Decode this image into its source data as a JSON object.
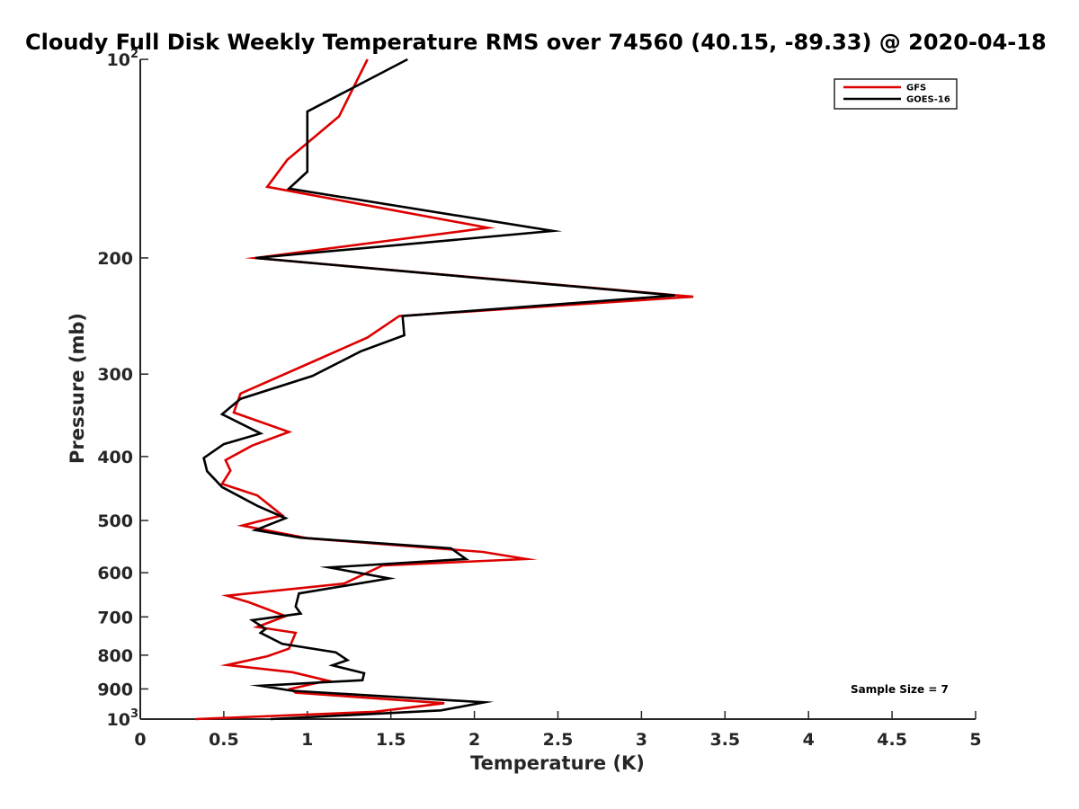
{
  "chart_data": {
    "type": "line",
    "title": "Cloudy Full Disk Weekly Temperature RMS over 74560 (40.15, -89.33) @ 2020-04-18",
    "xlabel": "Temperature (K)",
    "ylabel": "Pressure (mb)",
    "xlim": [
      0,
      5
    ],
    "ylim": [
      100,
      1000
    ],
    "yscale": "log",
    "y_reversed": true,
    "xticks": [
      0,
      0.5,
      1,
      1.5,
      2,
      2.5,
      3,
      3.5,
      4,
      4.5,
      5
    ],
    "xtick_labels": [
      "0",
      "0.5",
      "1",
      "1.5",
      "2",
      "2.5",
      "3",
      "3.5",
      "4",
      "4.5",
      "5"
    ],
    "yticks": [
      {
        "value": 100,
        "label": "10",
        "sup": "2"
      },
      {
        "value": 200,
        "label": "200"
      },
      {
        "value": 300,
        "label": "300"
      },
      {
        "value": 400,
        "label": "400"
      },
      {
        "value": 500,
        "label": "500"
      },
      {
        "value": 600,
        "label": "600"
      },
      {
        "value": 700,
        "label": "700"
      },
      {
        "value": 800,
        "label": "800"
      },
      {
        "value": 900,
        "label": "900"
      },
      {
        "value": 1000,
        "label": "10",
        "sup": "3"
      }
    ],
    "grid": false,
    "legend_position": "top-right",
    "annotation": "Sample Size = 7",
    "series": [
      {
        "name": "GFS",
        "color": "#dd0000",
        "x": [
          1.36,
          1.19,
          0.88,
          0.76,
          2.08,
          0.69,
          3.31,
          1.55,
          1.36,
          1.05,
          0.6,
          0.56,
          0.89,
          0.67,
          0.51,
          0.54,
          0.49,
          0.7,
          0.85,
          0.61,
          1.0,
          2.05,
          2.31,
          1.45,
          1.22,
          0.52,
          0.65,
          0.87,
          0.7,
          0.93,
          0.89,
          0.76,
          0.52,
          0.91,
          1.12,
          0.9,
          0.93,
          1.82,
          1.4,
          0.33
        ],
        "y": [
          100,
          122,
          142,
          156,
          180,
          200,
          229,
          245,
          264,
          286,
          321,
          343,
          367,
          385,
          405,
          420,
          440,
          458,
          491,
          509,
          532,
          558,
          572,
          585,
          623,
          650,
          665,
          698,
          725,
          740,
          782,
          803,
          828,
          849,
          874,
          900,
          912,
          946,
          975,
          1000
        ]
      },
      {
        "name": "GOES-16",
        "color": "#000000",
        "x": [
          1.6,
          1.0,
          1.0,
          1.0,
          0.89,
          2.47,
          0.69,
          3.2,
          1.57,
          1.58,
          1.32,
          1.03,
          0.6,
          0.49,
          0.72,
          0.5,
          0.38,
          0.4,
          0.49,
          0.7,
          0.87,
          0.69,
          0.96,
          1.86,
          1.95,
          1.13,
          1.49,
          0.95,
          0.93,
          0.96,
          0.67,
          0.75,
          0.72,
          0.85,
          1.17,
          1.24,
          1.15,
          1.34,
          1.33,
          0.72,
          0.91,
          2.06,
          1.8,
          0.78
        ],
        "y": [
          100,
          120,
          135,
          148,
          157,
          182,
          200,
          228,
          245,
          262,
          277,
          302,
          327,
          345,
          369,
          383,
          402,
          421,
          445,
          475,
          496,
          517,
          531,
          551,
          572,
          589,
          612,
          645,
          675,
          692,
          708,
          730,
          740,
          769,
          792,
          814,
          829,
          852,
          873,
          890,
          906,
          943,
          970,
          1000
        ]
      }
    ]
  }
}
